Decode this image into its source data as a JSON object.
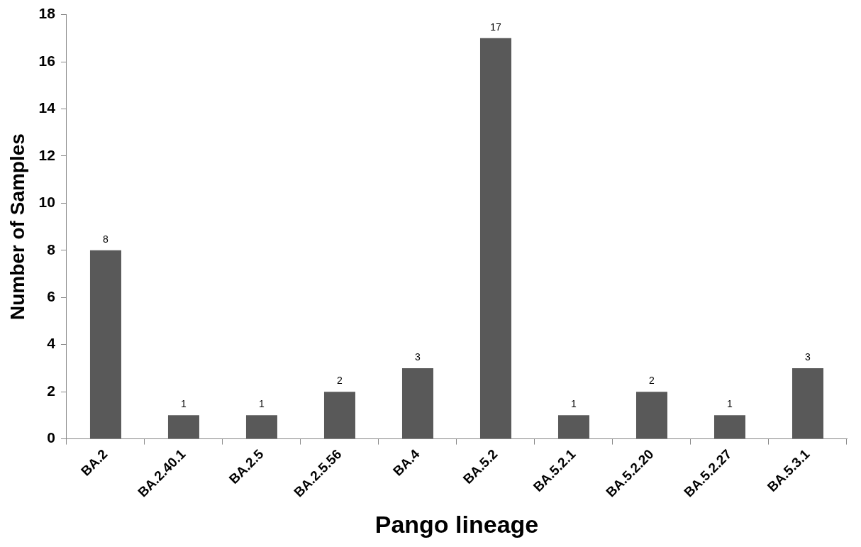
{
  "chart_data": {
    "type": "bar",
    "xlabel": "Pango lineage",
    "ylabel": "Number of Samples",
    "categories": [
      "BA.2",
      "BA.2.40.1",
      "BA.2.5",
      "BA.2.5.56",
      "BA.4",
      "BA.5.2",
      "BA.5.2.1",
      "BA.5.2.20",
      "BA.5.2.27",
      "BA.5.3.1"
    ],
    "values": [
      8,
      1,
      1,
      2,
      3,
      17,
      1,
      2,
      1,
      3
    ],
    "color": "#595959",
    "ylim": [
      0,
      18
    ],
    "yticks": [
      0,
      2,
      4,
      6,
      8,
      10,
      12,
      14,
      16,
      18
    ],
    "grid": false,
    "legend": false,
    "data_labels": true
  }
}
